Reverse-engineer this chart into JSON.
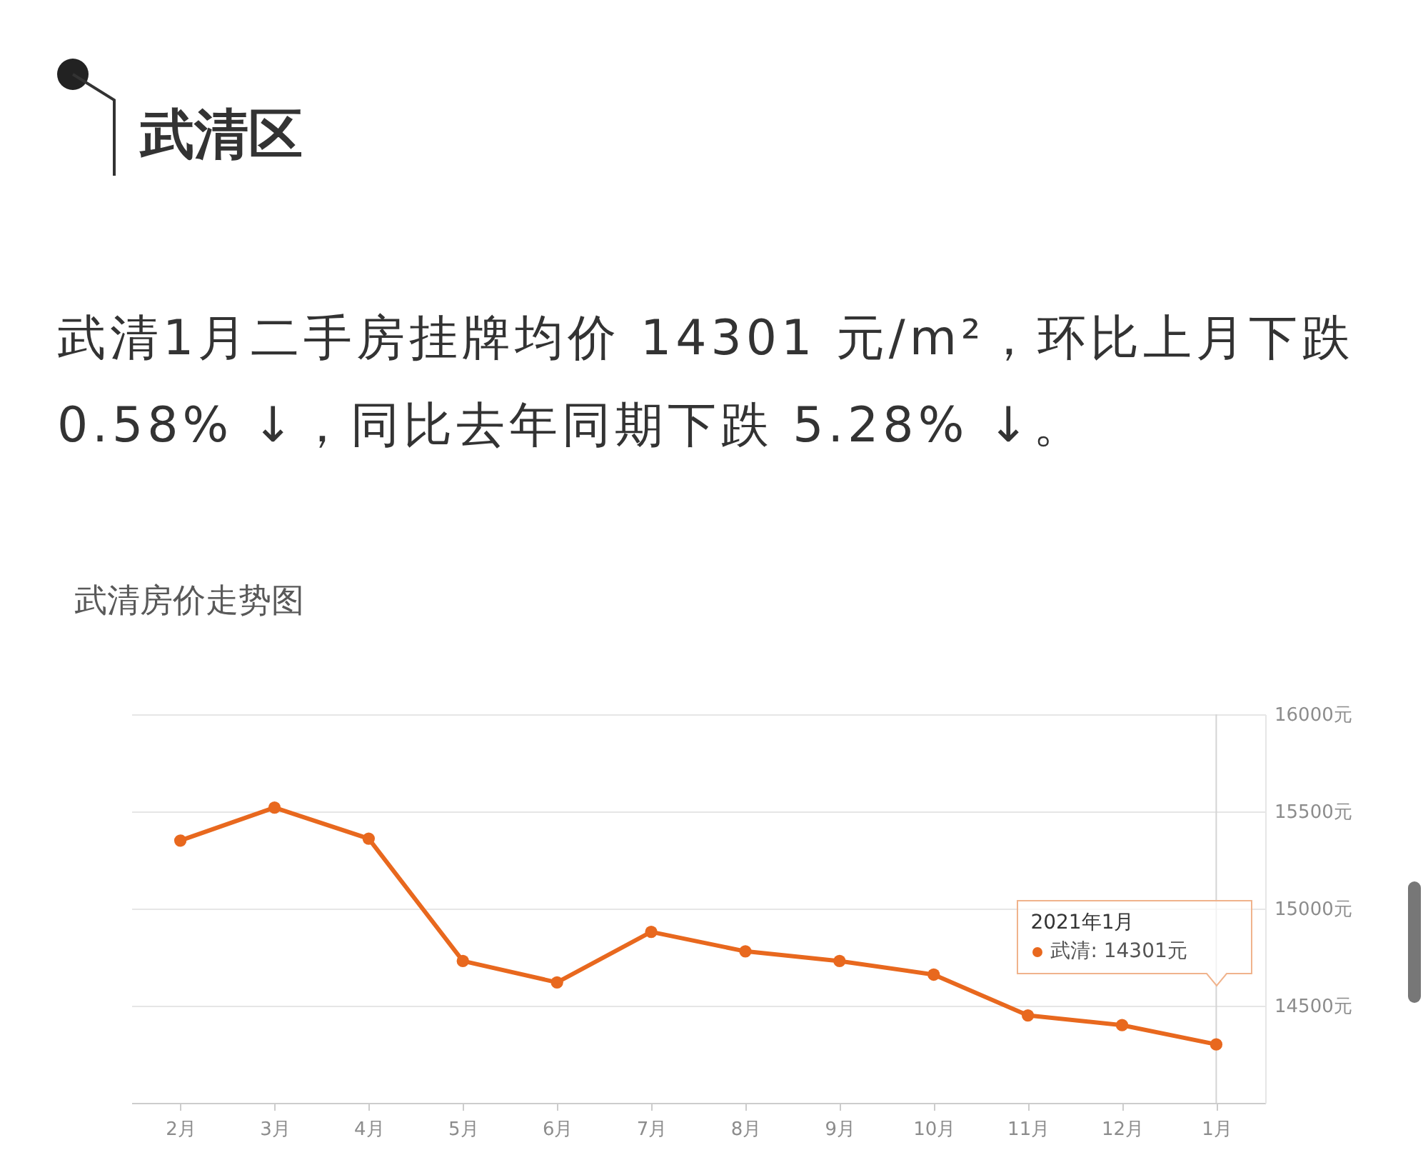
{
  "chart_data": {
    "type": "line",
    "title": "武清房价走势图",
    "annotations": [
      "武清区",
      "武清1月二手房挂牌均价 14301 元/m²，环比上月下跌 0.58% ↓，同比去年同期下跌 5.28% ↓。",
      "2021年1月",
      "武清: 14301元"
    ],
    "categories": [
      "2月",
      "3月",
      "4月",
      "5月",
      "6月",
      "7月",
      "8月",
      "9月",
      "10月",
      "11月",
      "12月",
      "1月"
    ],
    "series": [
      {
        "color": "#e8681e",
        "values": [
          15350,
          15520,
          15360,
          14730,
          14620,
          14880,
          14780,
          14730,
          14660,
          14450,
          14400,
          14301
        ]
      }
    ],
    "ylim": [
      14000,
      16000
    ],
    "yticks": [
      {
        "value": 14500,
        "label": "14500元"
      },
      {
        "value": 15000,
        "label": "15000元"
      },
      {
        "value": 15500,
        "label": "15500元"
      },
      {
        "value": 16000,
        "label": "16000元"
      }
    ],
    "grid": "y",
    "marker": "circle",
    "line_style": "solid",
    "ref_lines": [
      {
        "axis": "x",
        "value": "1月",
        "color": "#d4d4d4"
      }
    ]
  }
}
